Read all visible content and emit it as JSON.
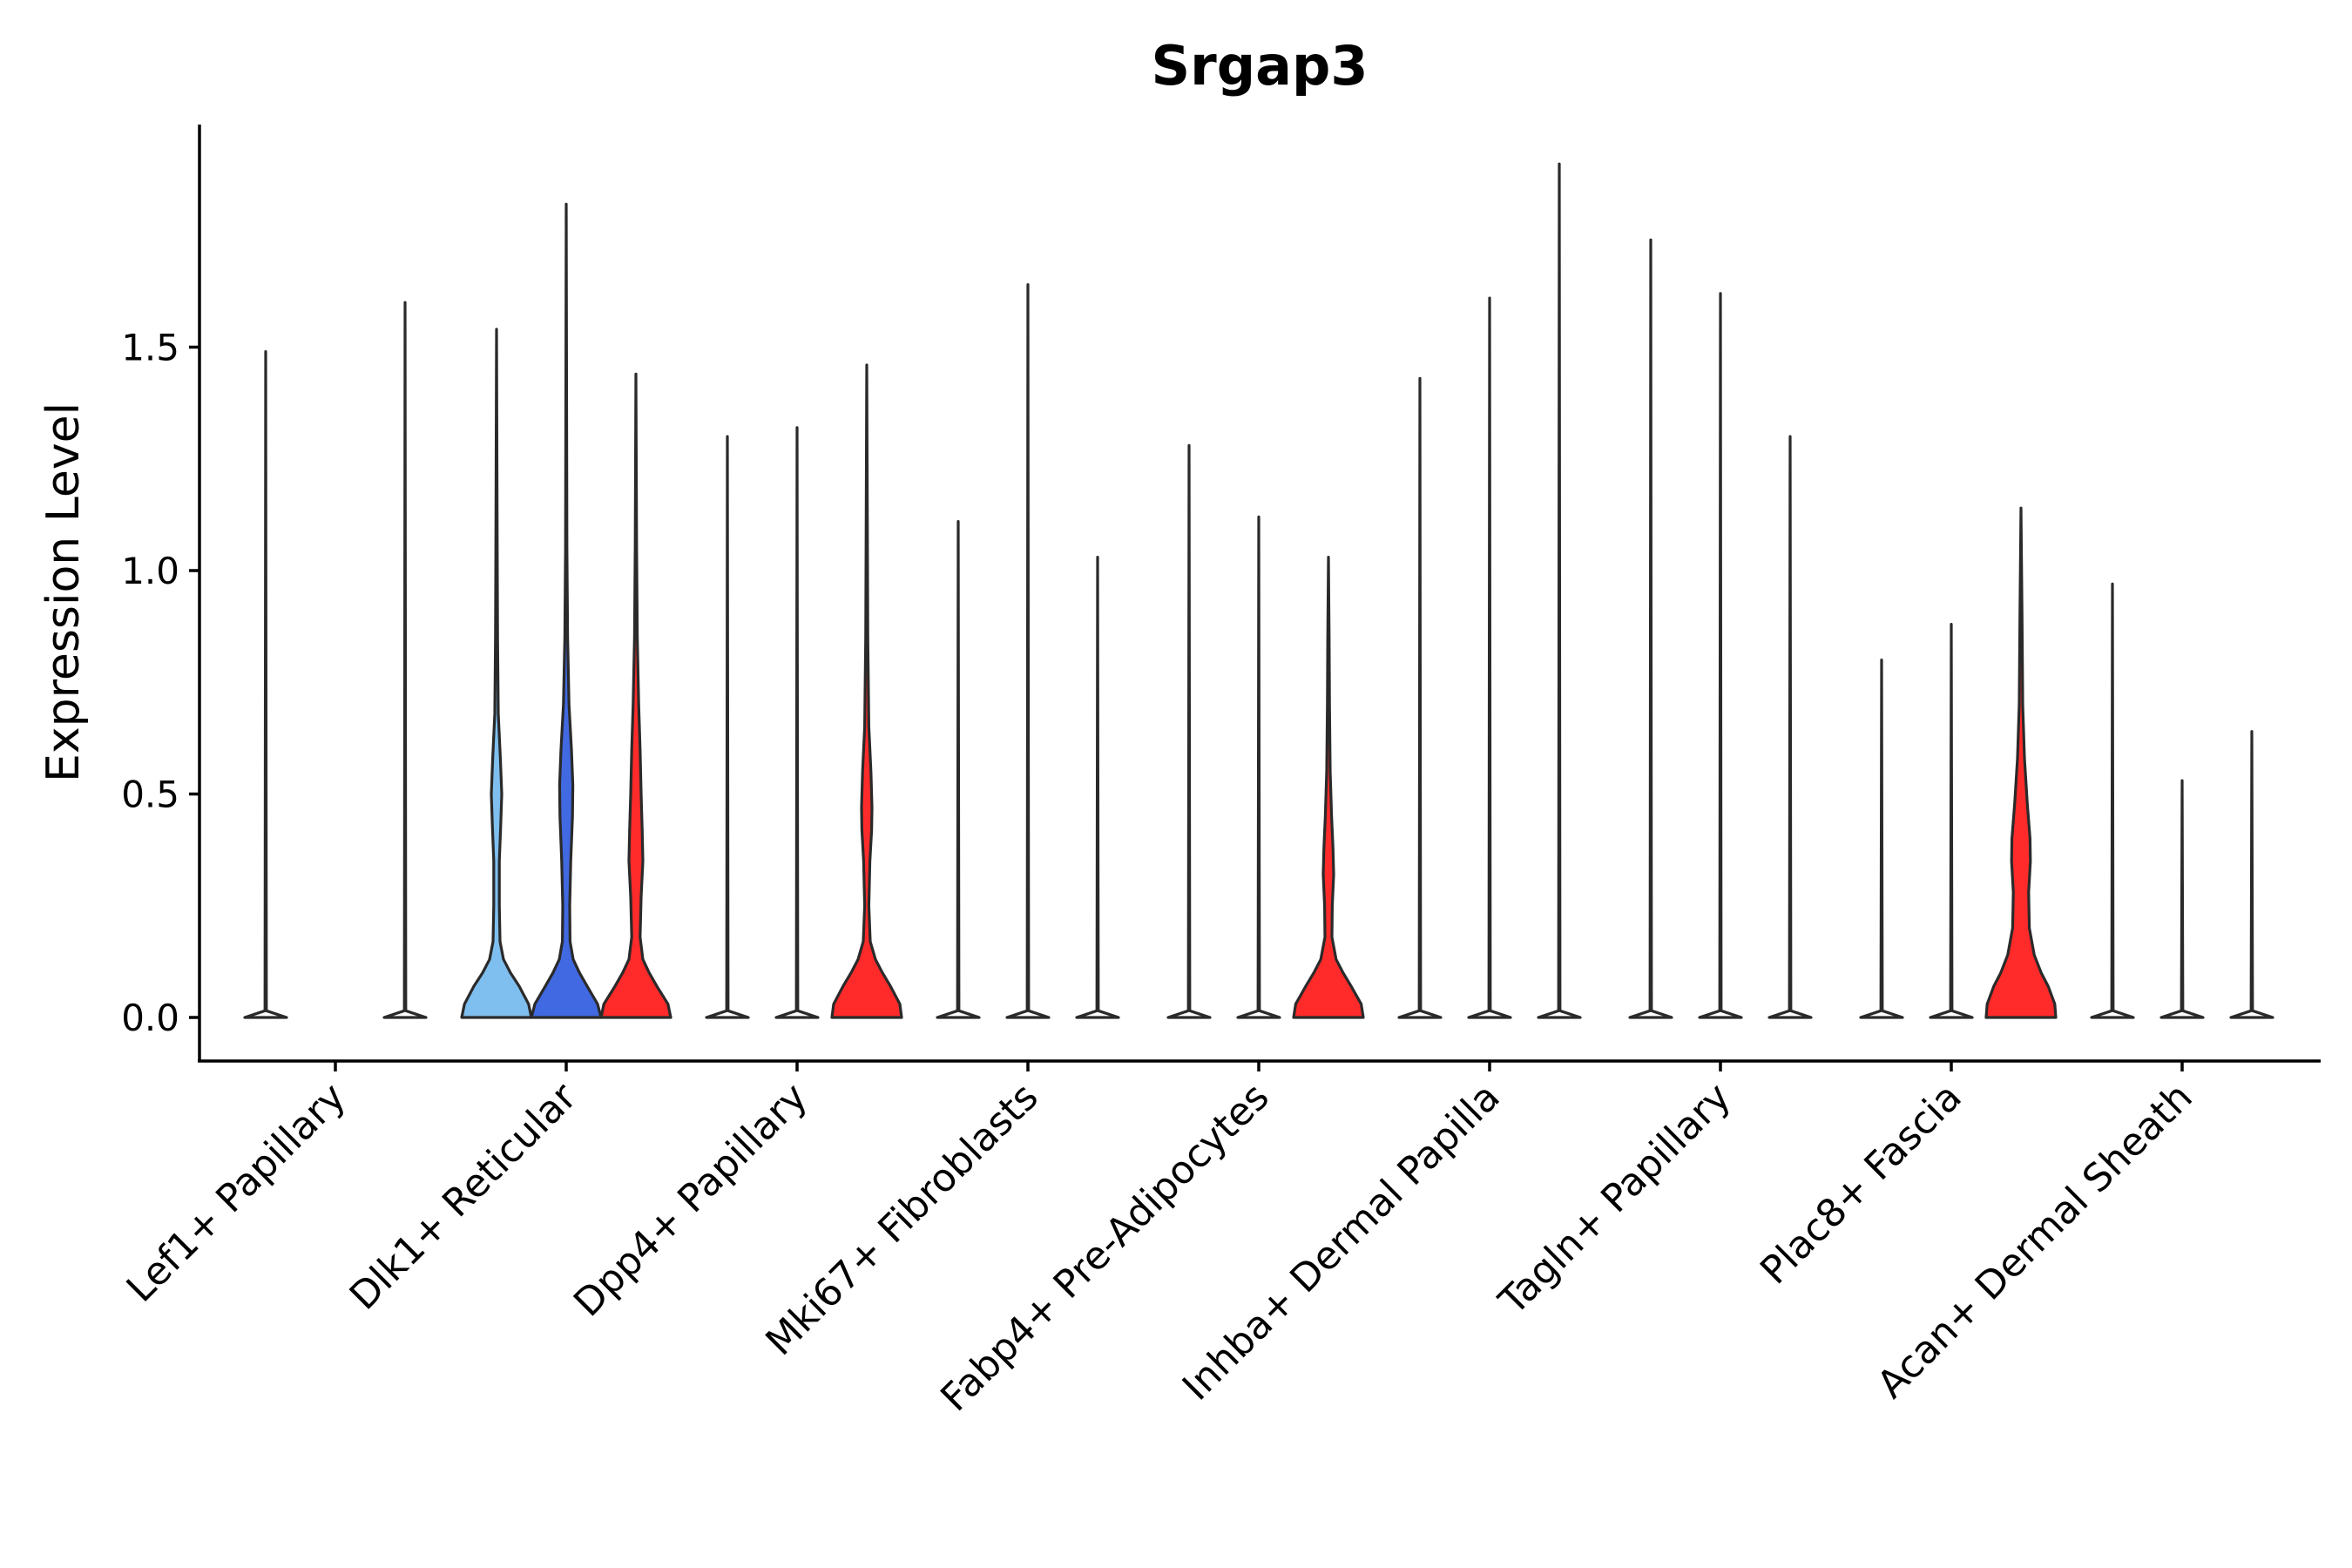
{
  "chart_data": {
    "type": "violin",
    "title": "Srgap3",
    "xlabel": "",
    "ylabel": "Expression Level",
    "ylim": [
      -0.1,
      2.0
    ],
    "yticks": [
      "0.0",
      "0.5",
      "1.0",
      "1.5"
    ],
    "ytick_values": [
      0,
      0.5,
      1.0,
      1.5
    ],
    "categories": [
      "Lef1+ Papillary",
      "Dlk1+ Reticular",
      "Dpp4+ Papillary",
      "Mki67+ Fibroblasts",
      "Fabp4+ Pre-Adipocytes",
      "Inhba+ Dermal Papilla",
      "Tagln+ Papillary",
      "Plac8+ Fascia",
      "Acan+ Dermal Sheath"
    ],
    "colors": {
      "light_blue": "#7FBFEF",
      "blue": "#4169E1",
      "red": "#FF2A2A",
      "none": "#FFFFFF"
    },
    "groups": [
      {
        "category": "Lef1+ Papillary",
        "violins": [
          {
            "max": 1.49,
            "fill": "none",
            "shape": "flat"
          },
          {
            "max": 0.0,
            "fill": "none",
            "shape": "flat"
          },
          {
            "max": 1.6,
            "fill": "none",
            "shape": "flat"
          }
        ]
      },
      {
        "category": "Dlk1+ Reticular",
        "violins": [
          {
            "max": 1.54,
            "fill": "light_blue",
            "shape": "lightblue"
          },
          {
            "max": 1.82,
            "fill": "blue",
            "shape": "blue"
          },
          {
            "max": 1.44,
            "fill": "red",
            "shape": "red_dlk1"
          }
        ]
      },
      {
        "category": "Dpp4+ Papillary",
        "violins": [
          {
            "max": 1.3,
            "fill": "none",
            "shape": "flat"
          },
          {
            "max": 1.32,
            "fill": "none",
            "shape": "flat"
          },
          {
            "max": 1.46,
            "fill": "red",
            "shape": "red_dpp4"
          }
        ]
      },
      {
        "category": "Mki67+ Fibroblasts",
        "violins": [
          {
            "max": 1.11,
            "fill": "none",
            "shape": "flat"
          },
          {
            "max": 1.64,
            "fill": "none",
            "shape": "flat"
          },
          {
            "max": 1.03,
            "fill": "none",
            "shape": "flat"
          }
        ]
      },
      {
        "category": "Fabp4+ Pre-Adipocytes",
        "violins": [
          {
            "max": 1.28,
            "fill": "none",
            "shape": "flat"
          },
          {
            "max": 1.12,
            "fill": "none",
            "shape": "flat"
          },
          {
            "max": 1.03,
            "fill": "red",
            "shape": "red_fabp4"
          }
        ]
      },
      {
        "category": "Inhba+ Dermal Papilla",
        "violins": [
          {
            "max": 1.43,
            "fill": "none",
            "shape": "flat"
          },
          {
            "max": 1.61,
            "fill": "none",
            "shape": "flat"
          },
          {
            "max": 1.91,
            "fill": "none",
            "shape": "flat"
          }
        ]
      },
      {
        "category": "Tagln+ Papillary",
        "violins": [
          {
            "max": 1.74,
            "fill": "none",
            "shape": "flat"
          },
          {
            "max": 1.62,
            "fill": "none",
            "shape": "flat"
          },
          {
            "max": 1.3,
            "fill": "none",
            "shape": "flat"
          }
        ]
      },
      {
        "category": "Plac8+ Fascia",
        "violins": [
          {
            "max": 0.8,
            "fill": "none",
            "shape": "flat"
          },
          {
            "max": 0.88,
            "fill": "none",
            "shape": "flat"
          },
          {
            "max": 1.14,
            "fill": "red",
            "shape": "red_plac8"
          }
        ]
      },
      {
        "category": "Acan+ Dermal Sheath",
        "violins": [
          {
            "max": 0.97,
            "fill": "none",
            "shape": "flat"
          },
          {
            "max": 0.53,
            "fill": "none",
            "shape": "flat"
          },
          {
            "max": 0.64,
            "fill": "none",
            "shape": "flat"
          }
        ]
      }
    ]
  }
}
